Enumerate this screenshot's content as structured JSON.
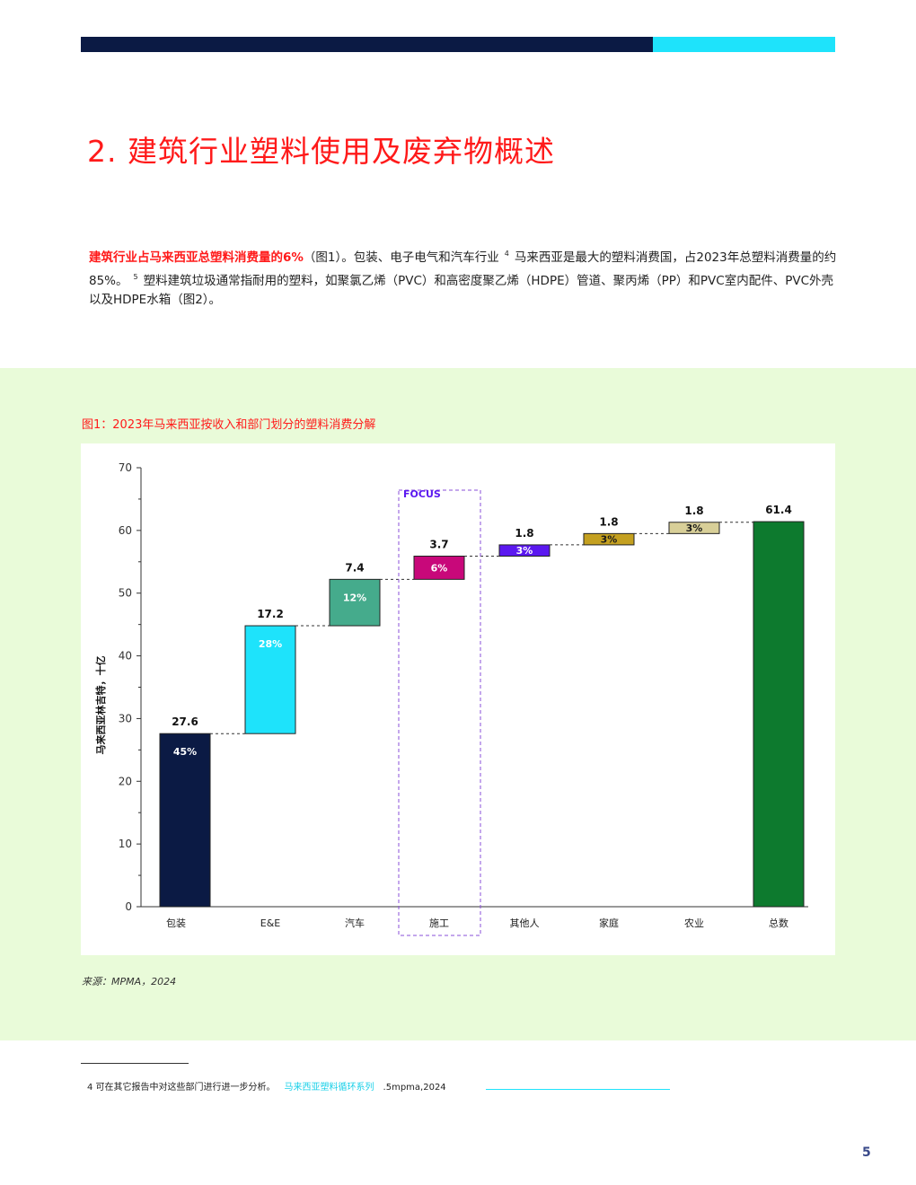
{
  "section_title": "2. 建筑行业塑料使用及废弃物概述",
  "intro": {
    "highlight": "建筑行业占马来西亚总塑料消费量的6%",
    "part1": "（图1）。包装、电子电气和汽车行业",
    "ref4": "4",
    "part2": "马来西亚是最大的塑料消费国，占2023年总塑料消费量的约85%。",
    "ref5": "5",
    "part3": "塑料建筑垃圾通常指耐用的塑料，如聚氯乙烯（PVC）和高密度聚乙烯（HDPE）管道、聚丙烯（PP）和PVC室内配件、PVC外壳以及HDPE水箱（图2）。"
  },
  "figure_title": "图1：2023年马来西亚按收入和部门划分的塑料消费分解",
  "source": "来源：MPMA，2024",
  "footnote": {
    "text": "4  可在其它报告中对这些部门进行进一步分析。",
    "link": "马来西亚塑料循环系列",
    "tail": ".5mpma,2024"
  },
  "page_number": "5",
  "chart_data": {
    "type": "waterfall",
    "ylabel": "马来西亚林吉特，十亿",
    "ylim": [
      0,
      70
    ],
    "yticks": [
      0,
      10,
      20,
      30,
      40,
      50,
      60,
      70
    ],
    "focus_label": "FOCUS",
    "bars": [
      {
        "category": "包装",
        "value": 27.6,
        "value_label": "27.6",
        "share": "45%",
        "color": "#0b1a44",
        "share_color": "#ffffff"
      },
      {
        "category": "E&E",
        "value": 17.2,
        "value_label": "17.2",
        "share": "28%",
        "color": "#1ee3fb",
        "share_color": "#ffffff"
      },
      {
        "category": "汽车",
        "value": 7.4,
        "value_label": "7.4",
        "share": "12%",
        "color": "#45ab8c",
        "share_color": "#ffffff"
      },
      {
        "category": "施工",
        "value": 3.7,
        "value_label": "3.7",
        "share": "6%",
        "color": "#c8087a",
        "share_color": "#ffffff",
        "focus": true
      },
      {
        "category": "其他人",
        "value": 1.8,
        "value_label": "1.8",
        "share": "3%",
        "color": "#5b18f0",
        "share_color": "#ffffff"
      },
      {
        "category": "家庭",
        "value": 1.8,
        "value_label": "1.8",
        "share": "3%",
        "color": "#c4a020",
        "share_color": "#1a1a1a"
      },
      {
        "category": "农业",
        "value": 1.8,
        "value_label": "1.8",
        "share": "3%",
        "color": "#d8cf98",
        "share_color": "#1a1a1a"
      },
      {
        "category": "总数",
        "value": 61.4,
        "value_label": "61.4",
        "share": "",
        "color": "#0d7a2e",
        "share_color": "#ffffff",
        "total": true
      }
    ],
    "colors": {
      "axis": "#333333",
      "connector": "#333333",
      "focus_border": "#8a4fd8",
      "focus_text": "#5b18f0"
    }
  }
}
